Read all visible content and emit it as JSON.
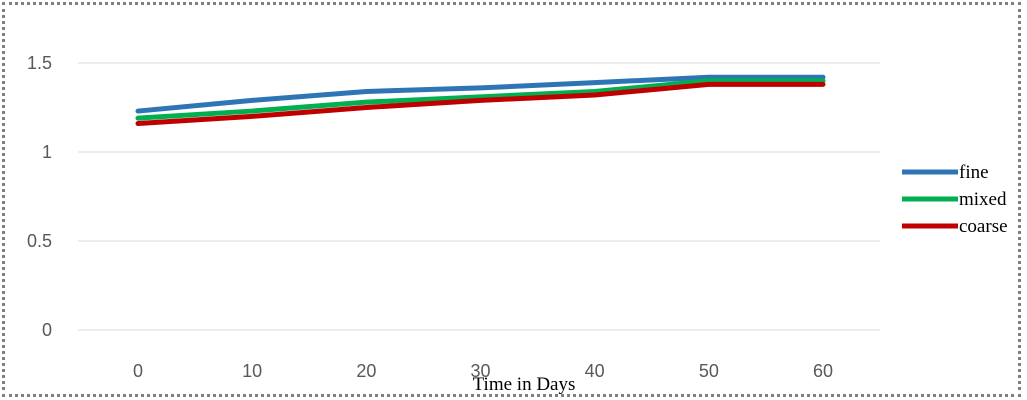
{
  "chart_data": {
    "type": "line",
    "title": "",
    "xlabel": "Time in Days",
    "ylabel": "",
    "x": [
      0,
      10,
      20,
      30,
      40,
      50,
      60
    ],
    "x_tick_labels": [
      "0",
      "10",
      "20",
      "30",
      "40",
      "50",
      "60"
    ],
    "y_ticks": [
      0,
      0.5,
      1,
      1.5
    ],
    "y_tick_labels": [
      "0",
      "0.5",
      "1",
      "1.5"
    ],
    "ylim": [
      0,
      1.5
    ],
    "grid": "horizontal",
    "legend_position": "right",
    "series": [
      {
        "name": "fine",
        "color": "#2E75B6",
        "values": [
          1.23,
          1.29,
          1.34,
          1.36,
          1.39,
          1.42,
          1.42
        ]
      },
      {
        "name": "mixed",
        "color": "#00B050",
        "values": [
          1.19,
          1.23,
          1.28,
          1.31,
          1.34,
          1.4,
          1.4
        ]
      },
      {
        "name": "coarse",
        "color": "#C00000",
        "values": [
          1.16,
          1.2,
          1.25,
          1.29,
          1.32,
          1.38,
          1.38
        ]
      }
    ]
  }
}
